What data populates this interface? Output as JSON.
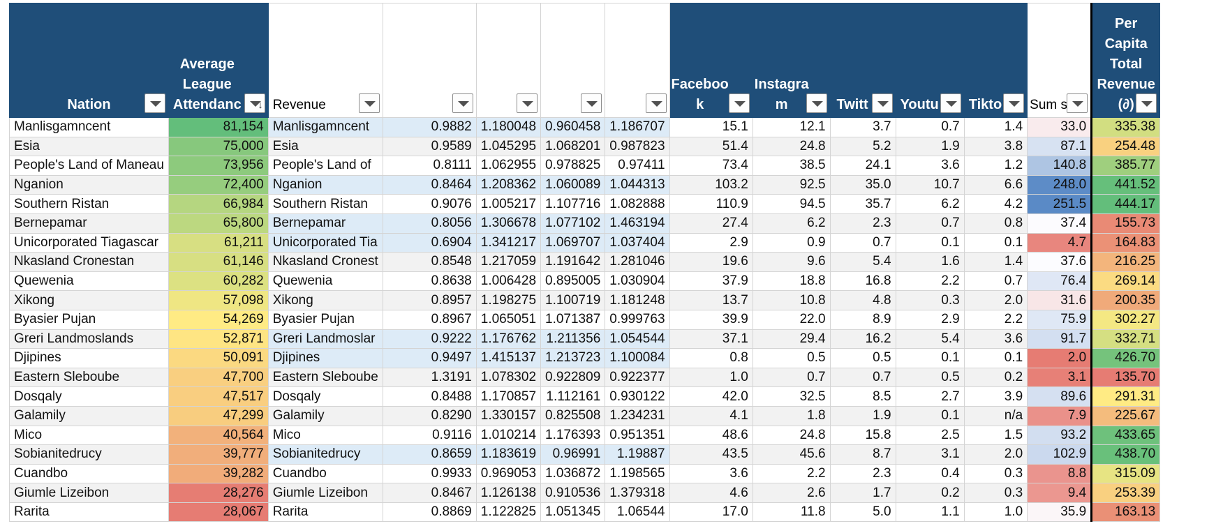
{
  "headers": {
    "nation": "Nation",
    "attendance": [
      "Average",
      "League",
      "Attendanc"
    ],
    "revenue": "Revenue",
    "facebook": [
      "Faceboo",
      "k"
    ],
    "instagram": [
      "Instagra",
      "m"
    ],
    "twitter": "Twitt",
    "youtube": "Youtu",
    "tiktok": "Tikto",
    "sum": "Sum sc",
    "per_capita": [
      "Per",
      "Capita",
      "Total",
      "Revenue",
      "(∂)"
    ]
  },
  "rows": [
    {
      "nation": "Manlisgamncent",
      "att": "81,154",
      "rev": "Manlisgamncent",
      "c1": "0.9882",
      "c2": "1.180048",
      "c3": "0.960458",
      "c4": "1.186707",
      "fb": "15.1",
      "ig": "12.1",
      "tw": "3.7",
      "yt": "0.7",
      "tt": "1.4",
      "sum": "33.0",
      "pc": "335.38"
    },
    {
      "nation": "Esia",
      "att": "75,000",
      "rev": "Esia",
      "c1": "0.9589",
      "c2": "1.045295",
      "c3": "1.068201",
      "c4": "0.987823",
      "fb": "51.4",
      "ig": "24.8",
      "tw": "5.2",
      "yt": "1.9",
      "tt": "3.8",
      "sum": "87.1",
      "pc": "254.48"
    },
    {
      "nation": "People's Land of Maneau",
      "att": "73,956",
      "rev": "People's Land of",
      "c1": "0.8111",
      "c2": "1.062955",
      "c3": "0.978825",
      "c4": "0.97411",
      "fb": "73.4",
      "ig": "38.5",
      "tw": "24.1",
      "yt": "3.6",
      "tt": "1.2",
      "sum": "140.8",
      "pc": "385.77"
    },
    {
      "nation": "Nganion",
      "att": "72,400",
      "rev": "Nganion",
      "c1": "0.8464",
      "c2": "1.208362",
      "c3": "1.060089",
      "c4": "1.044313",
      "fb": "103.2",
      "ig": "92.5",
      "tw": "35.0",
      "yt": "10.7",
      "tt": "6.6",
      "sum": "248.0",
      "pc": "441.52"
    },
    {
      "nation": "Southern Ristan",
      "att": "66,984",
      "rev": "Southern Ristan",
      "c1": "0.9076",
      "c2": "1.005217",
      "c3": "1.107716",
      "c4": "1.082888",
      "fb": "110.9",
      "ig": "94.5",
      "tw": "35.7",
      "yt": "6.2",
      "tt": "4.2",
      "sum": "251.5",
      "pc": "444.17"
    },
    {
      "nation": "Bernepamar",
      "att": "65,800",
      "rev": "Bernepamar",
      "c1": "0.8056",
      "c2": "1.306678",
      "c3": "1.077102",
      "c4": "1.463194",
      "fb": "27.4",
      "ig": "6.2",
      "tw": "2.3",
      "yt": "0.7",
      "tt": "0.8",
      "sum": "37.4",
      "pc": "155.73"
    },
    {
      "nation": "Unicorporated Tiagascar",
      "att": "61,211",
      "rev": "Unicorporated Tia",
      "c1": "0.6904",
      "c2": "1.341217",
      "c3": "1.069707",
      "c4": "1.037404",
      "fb": "2.9",
      "ig": "0.9",
      "tw": "0.7",
      "yt": "0.1",
      "tt": "0.1",
      "sum": "4.7",
      "pc": "164.83"
    },
    {
      "nation": "Nkasland Cronestan",
      "att": "61,146",
      "rev": "Nkasland Cronest",
      "c1": "0.8548",
      "c2": "1.217059",
      "c3": "1.191642",
      "c4": "1.281046",
      "fb": "19.6",
      "ig": "9.6",
      "tw": "5.4",
      "yt": "1.6",
      "tt": "1.4",
      "sum": "37.6",
      "pc": "216.25"
    },
    {
      "nation": "Quewenia",
      "att": "60,282",
      "rev": "Quewenia",
      "c1": "0.8638",
      "c2": "1.006428",
      "c3": "0.895005",
      "c4": "1.030904",
      "fb": "37.9",
      "ig": "18.8",
      "tw": "16.8",
      "yt": "2.2",
      "tt": "0.7",
      "sum": "76.4",
      "pc": "269.14"
    },
    {
      "nation": "Xikong",
      "att": "57,098",
      "rev": "Xikong",
      "c1": "0.8957",
      "c2": "1.198275",
      "c3": "1.100719",
      "c4": "1.181248",
      "fb": "13.7",
      "ig": "10.8",
      "tw": "4.8",
      "yt": "0.3",
      "tt": "2.0",
      "sum": "31.6",
      "pc": "200.35"
    },
    {
      "nation": "Byasier Pujan",
      "att": "54,269",
      "rev": "Byasier Pujan",
      "c1": "0.8967",
      "c2": "1.065051",
      "c3": "1.071387",
      "c4": "0.999763",
      "fb": "39.9",
      "ig": "22.0",
      "tw": "8.9",
      "yt": "2.9",
      "tt": "2.2",
      "sum": "75.9",
      "pc": "302.27"
    },
    {
      "nation": "Greri Landmoslands",
      "att": "52,871",
      "rev": "Greri Landmoslar",
      "c1": "0.9222",
      "c2": "1.176762",
      "c3": "1.211356",
      "c4": "1.054544",
      "fb": "37.1",
      "ig": "29.4",
      "tw": "16.2",
      "yt": "5.4",
      "tt": "3.6",
      "sum": "91.7",
      "pc": "332.71"
    },
    {
      "nation": "Djipines",
      "att": "50,091",
      "rev": "Djipines",
      "c1": "0.9497",
      "c2": "1.415137",
      "c3": "1.213723",
      "c4": "1.100084",
      "fb": "0.8",
      "ig": "0.5",
      "tw": "0.5",
      "yt": "0.1",
      "tt": "0.1",
      "sum": "2.0",
      "pc": "426.70"
    },
    {
      "nation": "Eastern Sleboube",
      "att": "47,700",
      "rev": "Eastern Sleboube",
      "c1": "1.3191",
      "c2": "1.078302",
      "c3": "0.922809",
      "c4": "0.922377",
      "fb": "1.0",
      "ig": "0.7",
      "tw": "0.7",
      "yt": "0.5",
      "tt": "0.2",
      "sum": "3.1",
      "pc": "135.70"
    },
    {
      "nation": "Dosqaly",
      "att": "47,517",
      "rev": "Dosqaly",
      "c1": "0.8488",
      "c2": "1.170857",
      "c3": "1.112161",
      "c4": "0.930122",
      "fb": "42.0",
      "ig": "32.5",
      "tw": "8.5",
      "yt": "2.7",
      "tt": "3.9",
      "sum": "89.6",
      "pc": "291.31"
    },
    {
      "nation": "Galamily",
      "att": "47,299",
      "rev": "Galamily",
      "c1": "0.8290",
      "c2": "1.330157",
      "c3": "0.825508",
      "c4": "1.234231",
      "fb": "4.1",
      "ig": "1.8",
      "tw": "1.9",
      "yt": "0.1",
      "tt": "n/a",
      "sum": "7.9",
      "pc": "225.67"
    },
    {
      "nation": "Mico",
      "att": "40,564",
      "rev": "Mico",
      "c1": "0.9116",
      "c2": "1.010214",
      "c3": "1.176393",
      "c4": "0.951351",
      "fb": "48.6",
      "ig": "24.8",
      "tw": "15.8",
      "yt": "2.5",
      "tt": "1.5",
      "sum": "93.2",
      "pc": "433.65"
    },
    {
      "nation": "Sobianitedrucy",
      "att": "39,777",
      "rev": "Sobianitedrucy",
      "c1": "0.8659",
      "c2": "1.183619",
      "c3": "0.96991",
      "c4": "1.19887",
      "fb": "43.5",
      "ig": "45.6",
      "tw": "8.7",
      "yt": "3.1",
      "tt": "2.0",
      "sum": "102.9",
      "pc": "438.70"
    },
    {
      "nation": "Cuandbo",
      "att": "39,282",
      "rev": "Cuandbo",
      "c1": "0.9933",
      "c2": "0.969053",
      "c3": "1.036872",
      "c4": "1.198565",
      "fb": "3.6",
      "ig": "2.2",
      "tw": "2.3",
      "yt": "0.4",
      "tt": "0.3",
      "sum": "8.8",
      "pc": "315.09"
    },
    {
      "nation": "Giumle Lizeibon",
      "att": "28,276",
      "rev": "Giumle Lizeibon",
      "c1": "0.8467",
      "c2": "1.126138",
      "c3": "0.910536",
      "c4": "1.379318",
      "fb": "4.6",
      "ig": "2.6",
      "tw": "1.7",
      "yt": "0.2",
      "tt": "0.3",
      "sum": "9.4",
      "pc": "253.39"
    },
    {
      "nation": "Rarita",
      "att": "28,067",
      "rev": "Rarita",
      "c1": "0.8869",
      "c2": "1.122825",
      "c3": "1.051345",
      "c4": "1.06544",
      "fb": "17.0",
      "ig": "11.8",
      "tw": "5.0",
      "yt": "1.1",
      "tt": "1.0",
      "sum": "35.9",
      "pc": "163.13"
    }
  ],
  "blue_rows": [
    0,
    3,
    5,
    6,
    11,
    12,
    17
  ],
  "colors": {
    "header_bg": "#1f4e79",
    "scale_low": "#e67c73",
    "scale_mid": "#ffeb84",
    "scale_high": "#63be7b",
    "sum_high": "#5a8ac6",
    "sum_mid": "#fcfcff",
    "revenue_highlight": "#ddebf7"
  }
}
